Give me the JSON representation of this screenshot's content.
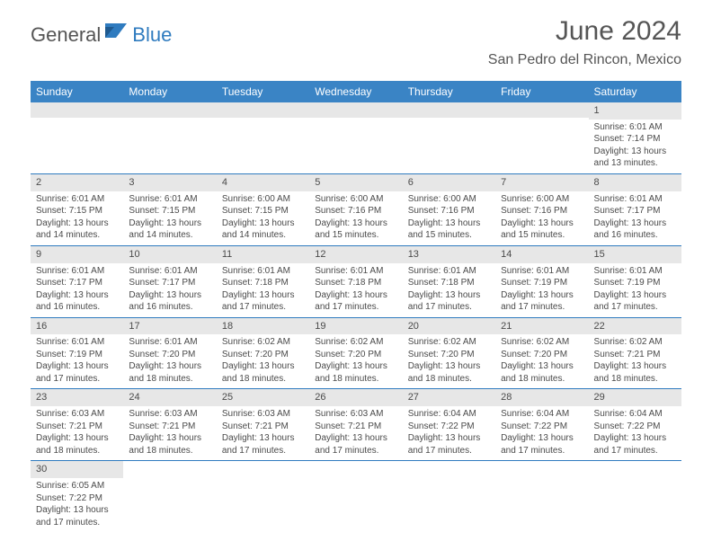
{
  "brand": {
    "general": "General",
    "blue": "Blue",
    "shape_color": "#2f7bbf"
  },
  "title": "June 2024",
  "location": "San Pedro del Rincon, Mexico",
  "colors": {
    "header_bg": "#3a84c5",
    "header_text": "#ffffff",
    "daybar_bg": "#e7e7e7",
    "border": "#2f7bbf",
    "text": "#4a4a4a"
  },
  "day_headers": [
    "Sunday",
    "Monday",
    "Tuesday",
    "Wednesday",
    "Thursday",
    "Friday",
    "Saturday"
  ],
  "weeks": [
    [
      null,
      null,
      null,
      null,
      null,
      null,
      {
        "n": "1",
        "sr": "Sunrise: 6:01 AM",
        "ss": "Sunset: 7:14 PM",
        "dl": "Daylight: 13 hours and 13 minutes."
      }
    ],
    [
      {
        "n": "2",
        "sr": "Sunrise: 6:01 AM",
        "ss": "Sunset: 7:15 PM",
        "dl": "Daylight: 13 hours and 14 minutes."
      },
      {
        "n": "3",
        "sr": "Sunrise: 6:01 AM",
        "ss": "Sunset: 7:15 PM",
        "dl": "Daylight: 13 hours and 14 minutes."
      },
      {
        "n": "4",
        "sr": "Sunrise: 6:00 AM",
        "ss": "Sunset: 7:15 PM",
        "dl": "Daylight: 13 hours and 14 minutes."
      },
      {
        "n": "5",
        "sr": "Sunrise: 6:00 AM",
        "ss": "Sunset: 7:16 PM",
        "dl": "Daylight: 13 hours and 15 minutes."
      },
      {
        "n": "6",
        "sr": "Sunrise: 6:00 AM",
        "ss": "Sunset: 7:16 PM",
        "dl": "Daylight: 13 hours and 15 minutes."
      },
      {
        "n": "7",
        "sr": "Sunrise: 6:00 AM",
        "ss": "Sunset: 7:16 PM",
        "dl": "Daylight: 13 hours and 15 minutes."
      },
      {
        "n": "8",
        "sr": "Sunrise: 6:01 AM",
        "ss": "Sunset: 7:17 PM",
        "dl": "Daylight: 13 hours and 16 minutes."
      }
    ],
    [
      {
        "n": "9",
        "sr": "Sunrise: 6:01 AM",
        "ss": "Sunset: 7:17 PM",
        "dl": "Daylight: 13 hours and 16 minutes."
      },
      {
        "n": "10",
        "sr": "Sunrise: 6:01 AM",
        "ss": "Sunset: 7:17 PM",
        "dl": "Daylight: 13 hours and 16 minutes."
      },
      {
        "n": "11",
        "sr": "Sunrise: 6:01 AM",
        "ss": "Sunset: 7:18 PM",
        "dl": "Daylight: 13 hours and 17 minutes."
      },
      {
        "n": "12",
        "sr": "Sunrise: 6:01 AM",
        "ss": "Sunset: 7:18 PM",
        "dl": "Daylight: 13 hours and 17 minutes."
      },
      {
        "n": "13",
        "sr": "Sunrise: 6:01 AM",
        "ss": "Sunset: 7:18 PM",
        "dl": "Daylight: 13 hours and 17 minutes."
      },
      {
        "n": "14",
        "sr": "Sunrise: 6:01 AM",
        "ss": "Sunset: 7:19 PM",
        "dl": "Daylight: 13 hours and 17 minutes."
      },
      {
        "n": "15",
        "sr": "Sunrise: 6:01 AM",
        "ss": "Sunset: 7:19 PM",
        "dl": "Daylight: 13 hours and 17 minutes."
      }
    ],
    [
      {
        "n": "16",
        "sr": "Sunrise: 6:01 AM",
        "ss": "Sunset: 7:19 PM",
        "dl": "Daylight: 13 hours and 17 minutes."
      },
      {
        "n": "17",
        "sr": "Sunrise: 6:01 AM",
        "ss": "Sunset: 7:20 PM",
        "dl": "Daylight: 13 hours and 18 minutes."
      },
      {
        "n": "18",
        "sr": "Sunrise: 6:02 AM",
        "ss": "Sunset: 7:20 PM",
        "dl": "Daylight: 13 hours and 18 minutes."
      },
      {
        "n": "19",
        "sr": "Sunrise: 6:02 AM",
        "ss": "Sunset: 7:20 PM",
        "dl": "Daylight: 13 hours and 18 minutes."
      },
      {
        "n": "20",
        "sr": "Sunrise: 6:02 AM",
        "ss": "Sunset: 7:20 PM",
        "dl": "Daylight: 13 hours and 18 minutes."
      },
      {
        "n": "21",
        "sr": "Sunrise: 6:02 AM",
        "ss": "Sunset: 7:20 PM",
        "dl": "Daylight: 13 hours and 18 minutes."
      },
      {
        "n": "22",
        "sr": "Sunrise: 6:02 AM",
        "ss": "Sunset: 7:21 PM",
        "dl": "Daylight: 13 hours and 18 minutes."
      }
    ],
    [
      {
        "n": "23",
        "sr": "Sunrise: 6:03 AM",
        "ss": "Sunset: 7:21 PM",
        "dl": "Daylight: 13 hours and 18 minutes."
      },
      {
        "n": "24",
        "sr": "Sunrise: 6:03 AM",
        "ss": "Sunset: 7:21 PM",
        "dl": "Daylight: 13 hours and 18 minutes."
      },
      {
        "n": "25",
        "sr": "Sunrise: 6:03 AM",
        "ss": "Sunset: 7:21 PM",
        "dl": "Daylight: 13 hours and 17 minutes."
      },
      {
        "n": "26",
        "sr": "Sunrise: 6:03 AM",
        "ss": "Sunset: 7:21 PM",
        "dl": "Daylight: 13 hours and 17 minutes."
      },
      {
        "n": "27",
        "sr": "Sunrise: 6:04 AM",
        "ss": "Sunset: 7:22 PM",
        "dl": "Daylight: 13 hours and 17 minutes."
      },
      {
        "n": "28",
        "sr": "Sunrise: 6:04 AM",
        "ss": "Sunset: 7:22 PM",
        "dl": "Daylight: 13 hours and 17 minutes."
      },
      {
        "n": "29",
        "sr": "Sunrise: 6:04 AM",
        "ss": "Sunset: 7:22 PM",
        "dl": "Daylight: 13 hours and 17 minutes."
      }
    ],
    [
      {
        "n": "30",
        "sr": "Sunrise: 6:05 AM",
        "ss": "Sunset: 7:22 PM",
        "dl": "Daylight: 13 hours and 17 minutes."
      },
      null,
      null,
      null,
      null,
      null,
      null
    ]
  ]
}
